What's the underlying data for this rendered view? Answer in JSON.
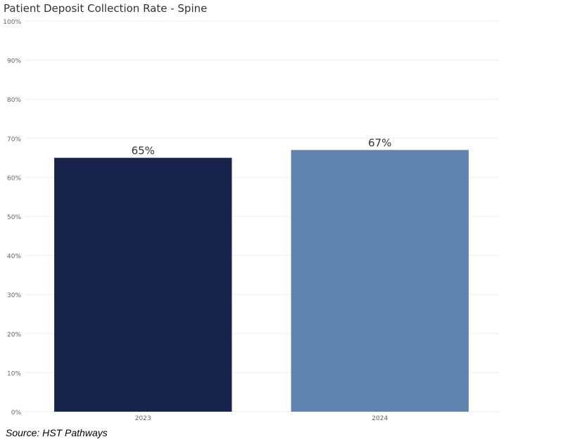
{
  "title": "Patient Deposit Collection Rate - Spine",
  "source": "Source: HST Pathways",
  "colors": {
    "bar_2023": "#17234b",
    "bar_2024": "#6083b0",
    "grid": "#eeeeee",
    "tick_text": "#666666",
    "label_text": "#333333"
  },
  "chart_data": {
    "type": "bar",
    "categories": [
      "2023",
      "2024"
    ],
    "values": [
      65,
      67
    ],
    "value_labels": [
      "65%",
      "67%"
    ],
    "ylim": [
      0,
      100
    ],
    "y_ticks": [
      0,
      10,
      20,
      30,
      40,
      50,
      60,
      70,
      80,
      90,
      100
    ],
    "y_tick_labels": [
      "0%",
      "10%",
      "20%",
      "30%",
      "40%",
      "50%",
      "60%",
      "70%",
      "80%",
      "90%",
      "100%"
    ],
    "xlabel": "",
    "ylabel": "",
    "grid": true,
    "legend": "none"
  }
}
